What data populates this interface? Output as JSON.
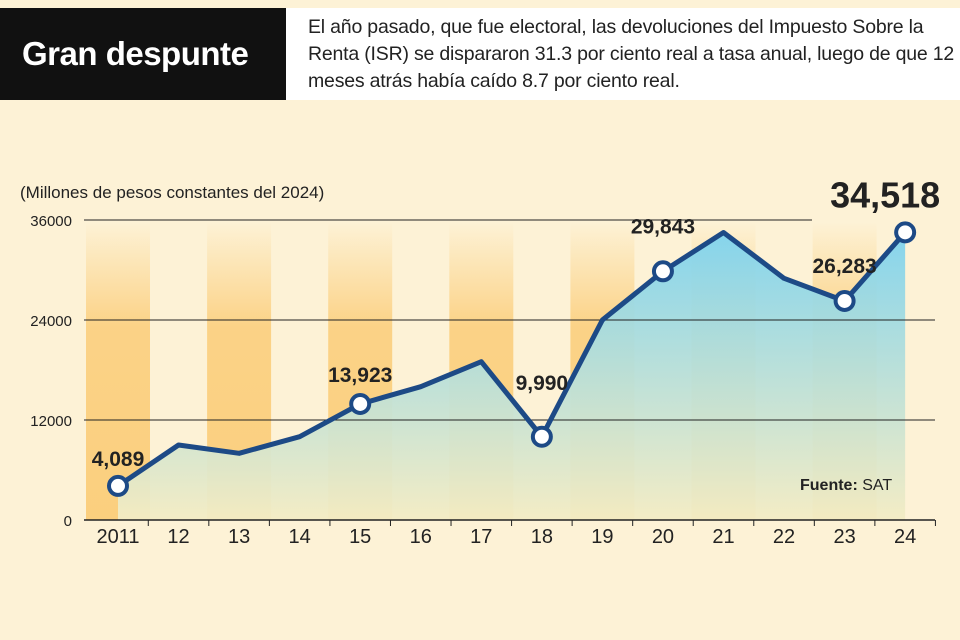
{
  "header": {
    "title": "Gran despunte",
    "description": "El año pasado, que fue electoral, las devoluciones del Impuesto Sobre la Renta (ISR) se dispararon 31.3 por ciento real a tasa anual, luego de que 12 meses atrás había caído 8.7 por ciento real."
  },
  "colors": {
    "line": "#1d4a86",
    "area_top": "#7fd3ee",
    "area_bottom": "#f3ecc4",
    "band": "#fbcf7e",
    "background": "#fdf2d6"
  },
  "chart_data": {
    "type": "area",
    "ylabel": "(Millones de pesos constantes del 2024)",
    "categories": [
      "2011",
      "12",
      "13",
      "14",
      "15",
      "16",
      "17",
      "18",
      "19",
      "20",
      "21",
      "22",
      "23",
      "24"
    ],
    "values": [
      4089,
      9000,
      8000,
      10000,
      13923,
      16000,
      19000,
      9990,
      24000,
      29843,
      34500,
      29000,
      26283,
      34518
    ],
    "ylim": [
      0,
      36000
    ],
    "yticks": [
      0,
      12000,
      24000,
      36000
    ],
    "ytick_labels": [
      "0",
      "12000",
      "24000",
      "36000"
    ],
    "highlighted": [
      {
        "index": 0,
        "label": "4,089"
      },
      {
        "index": 4,
        "label": "13,923"
      },
      {
        "index": 7,
        "label": "9,990"
      },
      {
        "index": 9,
        "label": "29,843"
      },
      {
        "index": 12,
        "label": "26,283"
      },
      {
        "index": 13,
        "label": "34,518"
      }
    ],
    "source_label": "Fuente:",
    "source": "SAT"
  }
}
